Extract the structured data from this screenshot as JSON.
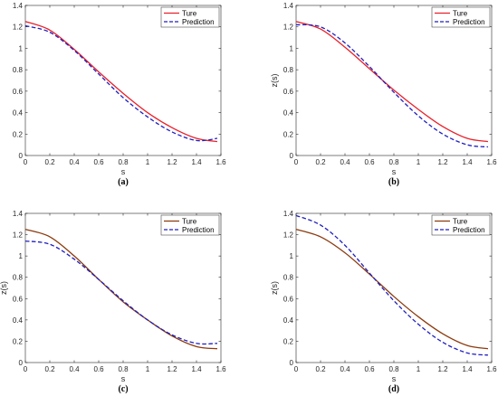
{
  "figure": {
    "captions": [
      "(a)",
      "(b)",
      "(c)",
      "(d)"
    ]
  },
  "chart_data": [
    {
      "type": "line",
      "caption": "(a)",
      "xlabel": "s",
      "ylabel": "",
      "xlim": [
        0,
        1.6
      ],
      "ylim": [
        0,
        1.4
      ],
      "xticks": [
        "0",
        "0.2",
        "0.4",
        "0.6",
        "0.8",
        "1",
        "1.2",
        "1.4",
        "1.6"
      ],
      "yticks": [
        "0",
        "0.2",
        "0.4",
        "0.6",
        "0.8",
        "1",
        "1.2",
        "1.4"
      ],
      "grid": false,
      "legend_position": "top-right",
      "x": [
        0,
        0.2,
        0.4,
        0.6,
        0.8,
        1.0,
        1.2,
        1.4,
        1.57
      ],
      "series": [
        {
          "name": "Ture",
          "style": "solid",
          "color": "#e8202a",
          "values": [
            1.25,
            1.17,
            0.99,
            0.78,
            0.58,
            0.4,
            0.26,
            0.16,
            0.13
          ]
        },
        {
          "name": "Prediction",
          "style": "dashed",
          "color": "#1f1fbf",
          "values": [
            1.21,
            1.15,
            0.98,
            0.76,
            0.54,
            0.36,
            0.22,
            0.14,
            0.16
          ]
        }
      ]
    },
    {
      "type": "line",
      "caption": "(b)",
      "xlabel": "s",
      "ylabel": "z(s)",
      "xlim": [
        0,
        1.6
      ],
      "ylim": [
        0,
        1.4
      ],
      "xticks": [
        "0",
        "0.2",
        "0.4",
        "0.6",
        "0.8",
        "1",
        "1.2",
        "1.4",
        "1.6"
      ],
      "yticks": [
        "0",
        "0.2",
        "0.4",
        "0.6",
        "0.8",
        "1",
        "1.2",
        "1.4"
      ],
      "grid": false,
      "legend_position": "top-right",
      "x": [
        0,
        0.2,
        0.4,
        0.6,
        0.8,
        1.0,
        1.2,
        1.4,
        1.57
      ],
      "series": [
        {
          "name": "Ture",
          "style": "solid",
          "color": "#e8202a",
          "values": [
            1.25,
            1.18,
            1.01,
            0.81,
            0.61,
            0.43,
            0.27,
            0.16,
            0.13
          ]
        },
        {
          "name": "Prediction",
          "style": "dashed",
          "color": "#1f1fbf",
          "values": [
            1.22,
            1.2,
            1.05,
            0.83,
            0.59,
            0.37,
            0.2,
            0.1,
            0.08
          ]
        }
      ]
    },
    {
      "type": "line",
      "caption": "(c)",
      "xlabel": "s",
      "ylabel": "z(s)",
      "xlim": [
        0,
        1.6
      ],
      "ylim": [
        0,
        1.4
      ],
      "xticks": [
        "0",
        "0.2",
        "0.4",
        "0.6",
        "0.8",
        "1",
        "1.2",
        "1.4",
        "1.6"
      ],
      "yticks": [
        "0",
        "0.2",
        "0.4",
        "0.6",
        "0.8",
        "1",
        "1.2",
        "1.4"
      ],
      "grid": false,
      "legend_position": "top-right",
      "x": [
        0,
        0.2,
        0.4,
        0.6,
        0.8,
        1.0,
        1.2,
        1.4,
        1.57
      ],
      "series": [
        {
          "name": "Ture",
          "style": "solid",
          "color": "#8b3a0e",
          "values": [
            1.25,
            1.18,
            1.0,
            0.78,
            0.57,
            0.4,
            0.25,
            0.15,
            0.13
          ]
        },
        {
          "name": "Prediction",
          "style": "dashed",
          "color": "#1f1fbf",
          "values": [
            1.14,
            1.11,
            0.97,
            0.78,
            0.58,
            0.4,
            0.26,
            0.18,
            0.18
          ]
        }
      ]
    },
    {
      "type": "line",
      "caption": "(d)",
      "xlabel": "s",
      "ylabel": "z(s)",
      "xlim": [
        0,
        1.6
      ],
      "ylim": [
        0,
        1.4
      ],
      "xticks": [
        "0",
        "0.2",
        "0.4",
        "0.6",
        "0.8",
        "1",
        "1.2",
        "1.4",
        "1.6"
      ],
      "yticks": [
        "0",
        "0.2",
        "0.4",
        "0.6",
        "0.8",
        "1",
        "1.2",
        "1.4"
      ],
      "grid": false,
      "legend_position": "top-right",
      "x": [
        0,
        0.2,
        0.4,
        0.6,
        0.8,
        1.0,
        1.2,
        1.4,
        1.57
      ],
      "series": [
        {
          "name": "Ture",
          "style": "solid",
          "color": "#8b3a0e",
          "values": [
            1.25,
            1.18,
            1.03,
            0.83,
            0.62,
            0.43,
            0.27,
            0.16,
            0.13
          ]
        },
        {
          "name": "Prediction",
          "style": "dashed",
          "color": "#1f1fbf",
          "values": [
            1.38,
            1.29,
            1.1,
            0.84,
            0.58,
            0.36,
            0.19,
            0.09,
            0.07
          ]
        }
      ]
    }
  ]
}
